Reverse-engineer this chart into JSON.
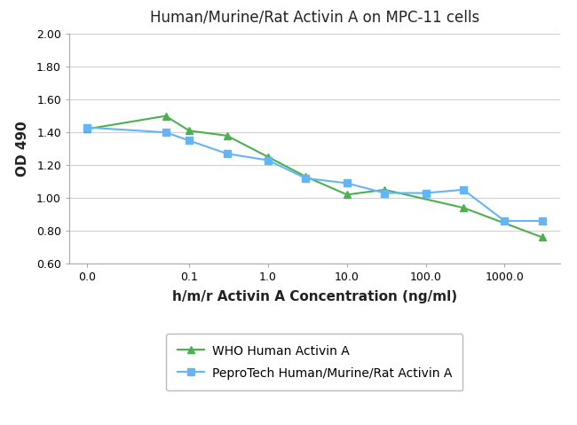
{
  "title": "Human/Murine/Rat Activin A on MPC-11 cells",
  "xlabel": "h/m/r Activin A Concentration (ng/ml)",
  "ylabel": "OD 490",
  "ylim": [
    0.6,
    2.0
  ],
  "yticks": [
    0.6,
    0.8,
    1.0,
    1.2,
    1.4,
    1.6,
    1.8,
    2.0
  ],
  "series1_name": "WHO Human Activin A",
  "series1_color": "#4caf50",
  "series1_x": [
    0.005,
    0.05,
    0.1,
    0.3,
    1.0,
    3.0,
    10.0,
    30.0,
    300.0,
    3000.0
  ],
  "series1_y": [
    1.42,
    1.5,
    1.41,
    1.38,
    1.25,
    1.13,
    1.02,
    1.05,
    0.94,
    0.76
  ],
  "series2_name": "PeproTech Human/Murine/Rat Activin A",
  "series2_color": "#64b5f6",
  "series2_x": [
    0.005,
    0.05,
    0.1,
    0.3,
    1.0,
    3.0,
    10.0,
    30.0,
    100.0,
    300.0,
    1000.0,
    3000.0
  ],
  "series2_y": [
    1.43,
    1.4,
    1.35,
    1.27,
    1.23,
    1.12,
    1.09,
    1.03,
    1.03,
    1.05,
    0.86,
    0.86
  ],
  "background_color": "#ffffff",
  "grid_color": "#d0d0d0",
  "title_fontsize": 12,
  "axis_label_fontsize": 11,
  "tick_fontsize": 9,
  "legend_fontsize": 10
}
